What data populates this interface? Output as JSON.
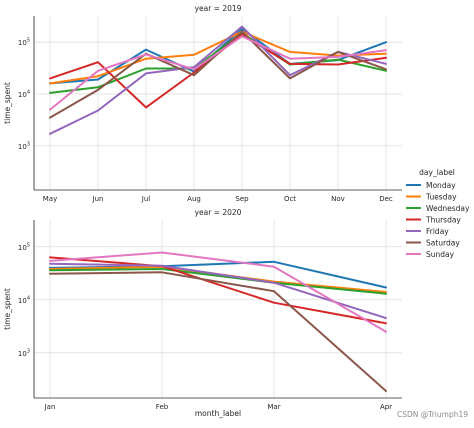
{
  "chart_data": [
    {
      "type": "line",
      "title": "year = 2019",
      "xlabel": "",
      "ylabel": "time_spent",
      "yscale": "log",
      "ylim": [
        140,
        320000
      ],
      "y_ticks": [
        {
          "value": 1000,
          "base": "10",
          "exp": "3"
        },
        {
          "value": 10000,
          "base": "10",
          "exp": "4"
        },
        {
          "value": 100000,
          "base": "10",
          "exp": "5"
        }
      ],
      "categories": [
        "May",
        "Jun",
        "Jul",
        "Aug",
        "Sep",
        "Oct",
        "Nov",
        "Dec"
      ],
      "grid": true,
      "series": [
        {
          "name": "Monday",
          "values": [
            16000,
            19000,
            72000,
            27000,
            180000,
            38000,
            45000,
            100000
          ]
        },
        {
          "name": "Tuesday",
          "values": [
            16000,
            22000,
            48000,
            57000,
            160000,
            65000,
            55000,
            60000
          ]
        },
        {
          "name": "Wednesday",
          "values": [
            10500,
            13500,
            31000,
            31000,
            150000,
            37000,
            46000,
            28000
          ]
        },
        {
          "name": "Thursday",
          "values": [
            20000,
            41000,
            5500,
            26000,
            140000,
            38000,
            37000,
            50000
          ]
        },
        {
          "name": "Friday",
          "values": [
            1700,
            4800,
            25000,
            33000,
            200000,
            23000,
            65000,
            38000
          ]
        },
        {
          "name": "Saturday",
          "values": [
            3500,
            12000,
            60000,
            23000,
            160000,
            20000,
            65000,
            30000
          ]
        },
        {
          "name": "Sunday",
          "values": [
            5000,
            28000,
            58000,
            30000,
            130000,
            48000,
            52000,
            70000
          ]
        }
      ]
    },
    {
      "type": "line",
      "title": "year = 2020",
      "xlabel": "month_label",
      "ylabel": "time_spent",
      "yscale": "log",
      "ylim": [
        140,
        320000
      ],
      "y_ticks": [
        {
          "value": 1000,
          "base": "10",
          "exp": "3"
        },
        {
          "value": 10000,
          "base": "10",
          "exp": "4"
        },
        {
          "value": 100000,
          "base": "10",
          "exp": "5"
        }
      ],
      "categories": [
        "Jan",
        "Feb",
        "Mar",
        "Apr"
      ],
      "grid": true,
      "series": [
        {
          "name": "Monday",
          "values": [
            40000,
            43000,
            52000,
            17000
          ]
        },
        {
          "name": "Tuesday",
          "values": [
            38000,
            42000,
            22000,
            14000
          ]
        },
        {
          "name": "Wednesday",
          "values": [
            36000,
            38000,
            21000,
            13000
          ]
        },
        {
          "name": "Thursday",
          "values": [
            63000,
            43000,
            8800,
            3600
          ]
        },
        {
          "name": "Friday",
          "values": [
            48000,
            44000,
            21000,
            4500
          ]
        },
        {
          "name": "Saturday",
          "values": [
            31000,
            33000,
            14500,
            190
          ]
        },
        {
          "name": "Sunday",
          "values": [
            54000,
            78000,
            42000,
            2500
          ]
        }
      ]
    }
  ],
  "legend": {
    "title": "day_label",
    "placement": "right",
    "items": [
      {
        "label": "Monday",
        "color": "#1f77b4"
      },
      {
        "label": "Tuesday",
        "color": "#ff7f0e"
      },
      {
        "label": "Wednesday",
        "color": "#2ca02c"
      },
      {
        "label": "Thursday",
        "color": "#d62728"
      },
      {
        "label": "Friday",
        "color": "#9467bd"
      },
      {
        "label": "Saturday",
        "color": "#8c564b"
      },
      {
        "label": "Sunday",
        "color": "#e377c2"
      }
    ]
  },
  "watermark": "CSDN @Triumph19"
}
